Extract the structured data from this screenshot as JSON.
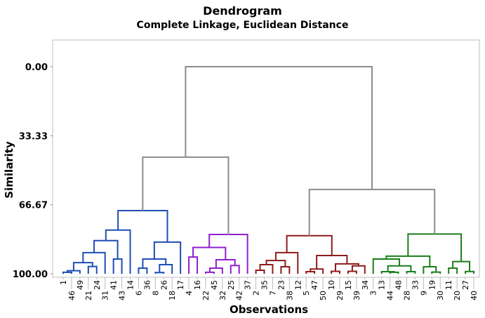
{
  "chart_data": {
    "type": "dendrogram",
    "title": "Dendrogram",
    "subtitle": "Complete Linkage, Euclidean Distance",
    "xlabel": "Observations",
    "ylabel": "Similarity",
    "yticks": [
      "0.00",
      "33.33",
      "66.67",
      "100.00"
    ],
    "ytick_values": [
      0,
      33.33,
      66.67,
      100
    ],
    "ylim": [
      100,
      0
    ],
    "link_color": "#8c8c8c",
    "tree": {
      "h": 0,
      "c": [
        {
          "h": 43.7,
          "c": [
            {
              "h": 69.5,
              "color": "#1f4db5",
              "c": [
                {
                  "h": 78.9,
                  "c": [
                    {
                      "h": 84,
                      "c": [
                        {
                          "h": 89.8,
                          "c": [
                            {
                              "h": 94.6,
                              "c": [
                                {
                                  "h": 98.5,
                                  "c": [
                                    {
                                      "h": 99.3,
                                      "c": [
                                        "1",
                                        "46"
                                      ]
                                    },
                                    "49"
                                  ]
                                },
                                {
                                  "h": 96.5,
                                  "c": [
                                    "21",
                                    "24"
                                  ]
                                }
                              ]
                            },
                            "31"
                          ]
                        },
                        {
                          "h": 92.9,
                          "c": [
                            "41",
                            "43"
                          ]
                        }
                      ]
                    },
                    "14"
                  ]
                },
                {
                  "h": 84.7,
                  "c": [
                    {
                      "h": 92.9,
                      "c": [
                        {
                          "h": 97.3,
                          "c": [
                            "6",
                            "36"
                          ]
                        },
                        {
                          "h": 95.6,
                          "c": [
                            {
                              "h": 99.4,
                              "c": [
                                "8",
                                "26"
                              ]
                            },
                            "18"
                          ]
                        }
                      ]
                    },
                    "17"
                  ]
                }
              ]
            },
            {
              "h": 81,
              "color": "#8f1fd0",
              "c": [
                {
                  "h": 87.3,
                  "c": [
                    {
                      "h": 91.9,
                      "c": [
                        "4",
                        "16"
                      ]
                    },
                    {
                      "h": 93.2,
                      "c": [
                        {
                          "h": 97.3,
                          "c": [
                            {
                              "h": 99.3,
                              "c": [
                                "22",
                                "45"
                              ]
                            },
                            "32"
                          ]
                        },
                        {
                          "h": 96,
                          "c": [
                            "25",
                            "42"
                          ]
                        }
                      ]
                    }
                  ]
                },
                "37"
              ]
            }
          ]
        },
        {
          "h": 59.3,
          "c": [
            {
              "h": 81.6,
              "color": "#8e1b1b",
              "c": [
                {
                  "h": 89.8,
                  "c": [
                    {
                      "h": 93.6,
                      "c": [
                        {
                          "h": 95.6,
                          "c": [
                            {
                              "h": 98.3,
                              "c": [
                                "2",
                                "35"
                              ]
                            },
                            "7"
                          ]
                        },
                        {
                          "h": 96.6,
                          "c": [
                            "23",
                            "38"
                          ]
                        }
                      ]
                    },
                    "12"
                  ]
                },
                {
                  "h": 91.2,
                  "c": [
                    {
                      "h": 97.7,
                      "c": [
                        {
                          "h": 99,
                          "c": [
                            "5",
                            "47"
                          ]
                        },
                        "50"
                      ]
                    },
                    {
                      "h": 95.2,
                      "c": [
                        {
                          "h": 98.8,
                          "c": [
                            "10",
                            "29"
                          ]
                        },
                        {
                          "h": 96.2,
                          "c": [
                            {
                              "h": 98.8,
                              "c": [
                                "15",
                                "39"
                              ]
                            },
                            "34"
                          ]
                        }
                      ]
                    }
                  ]
                }
              ]
            },
            {
              "h": 80.8,
              "color": "#1b7d1b",
              "c": [
                {
                  "h": 91.5,
                  "c": [
                    {
                      "h": 92.9,
                      "c": [
                        "3",
                        {
                          "h": 96.2,
                          "c": [
                            {
                              "h": 99,
                              "c": [
                                "13",
                                {
                                  "h": 99.3,
                                  "c": [
                                    "44",
                                    "48"
                                  ]
                                }
                              ]
                            },
                            {
                              "h": 99,
                              "c": [
                                "28",
                                "33"
                              ]
                            }
                          ]
                        }
                      ]
                    },
                    {
                      "h": 96.6,
                      "c": [
                        "9",
                        {
                          "h": 99.2,
                          "c": [
                            "19",
                            "30"
                          ]
                        }
                      ]
                    }
                  ]
                },
                {
                  "h": 94.1,
                  "c": [
                    {
                      "h": 97.3,
                      "c": [
                        "11",
                        "20"
                      ]
                    },
                    {
                      "h": 98.9,
                      "c": [
                        "27",
                        "40"
                      ]
                    }
                  ]
                }
              ]
            }
          ]
        }
      ]
    }
  }
}
